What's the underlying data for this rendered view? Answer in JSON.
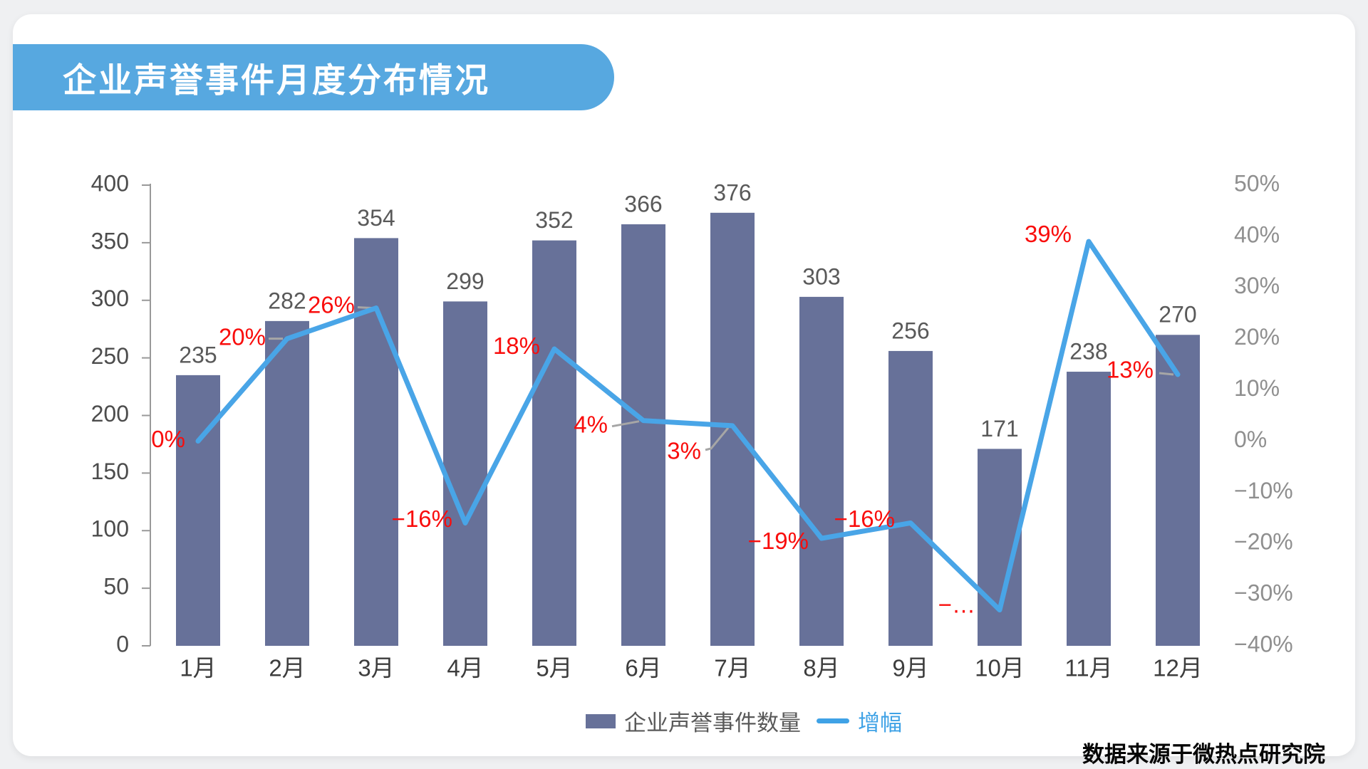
{
  "page": {
    "title": "企业声誉事件月度分布情况",
    "source": "数据来源于微热点研究院"
  },
  "legend": {
    "bars_label": "企业声誉事件数量",
    "line_label": "增幅"
  },
  "colors": {
    "banner_blue": "#57a8e0",
    "bar_slate": "#677199",
    "line_blue": "#49a5e7",
    "label_red": "#f90d0c",
    "axis_gray": "#999999",
    "left_tick_text": "#4c4c4c",
    "right_tick_text": "#8f8f8f",
    "x_tick_text": "#3d3d3d",
    "bar_value_text": "#595959",
    "leader_gray": "#a6a6a6"
  },
  "chart_data": {
    "type": "bar",
    "subtype": "bar+line dual axis",
    "title": "企业声誉事件月度分布情况",
    "categories": [
      "1月",
      "2月",
      "3月",
      "4月",
      "5月",
      "6月",
      "7月",
      "8月",
      "9月",
      "10月",
      "11月",
      "12月"
    ],
    "series": [
      {
        "name": "企业声誉事件数量",
        "type": "bar",
        "axis": "left",
        "values": [
          235,
          282,
          354,
          299,
          352,
          366,
          376,
          303,
          256,
          171,
          238,
          270
        ]
      },
      {
        "name": "增幅",
        "type": "line",
        "axis": "right",
        "values_percent": [
          0,
          20,
          26,
          -16,
          18,
          4,
          3,
          -19,
          -16,
          -33,
          39,
          13
        ],
        "point_labels": [
          {
            "text": "0%",
            "dx": -18,
            "dy": 0,
            "leader": "none"
          },
          {
            "text": "20%",
            "dx": -30,
            "dy": 0,
            "leader": "dash"
          },
          {
            "text": "26%",
            "dx": -30,
            "dy": -2,
            "leader": "dash"
          },
          {
            "text": "−16%",
            "dx": -18,
            "dy": -3,
            "leader": "none"
          },
          {
            "text": "18%",
            "dx": -20,
            "dy": -2,
            "leader": "none"
          },
          {
            "text": "4%",
            "dx": -50,
            "dy": 8,
            "leader": "slant"
          },
          {
            "text": "3%",
            "dx": -44,
            "dy": 38,
            "leader": "bent"
          },
          {
            "text": "−19%",
            "dx": -18,
            "dy": 6,
            "leader": "none"
          },
          {
            "text": "−16%",
            "dx": -22,
            "dy": -3,
            "leader": "none"
          },
          {
            "text": "−…",
            "dx": -34,
            "dy": -5,
            "leader": "none"
          },
          {
            "text": "39%",
            "dx": -24,
            "dy": -8,
            "leader": "none"
          },
          {
            "text": "13%",
            "dx": -34,
            "dy": -4,
            "leader": "dash"
          }
        ]
      }
    ],
    "left_axis": {
      "min": 0,
      "max": 400,
      "step": 50,
      "ticks": [
        "0",
        "50",
        "100",
        "150",
        "200",
        "250",
        "300",
        "350",
        "400"
      ]
    },
    "right_axis": {
      "min": -40,
      "max": 50,
      "step": 10,
      "ticks": [
        "−40%",
        "−30%",
        "−20%",
        "−10%",
        "0%",
        "10%",
        "20%",
        "30%",
        "40%",
        "50%"
      ]
    },
    "legend_entries": [
      "企业声誉事件数量",
      "增幅"
    ],
    "grid": false,
    "legend_position": "bottom-center"
  }
}
